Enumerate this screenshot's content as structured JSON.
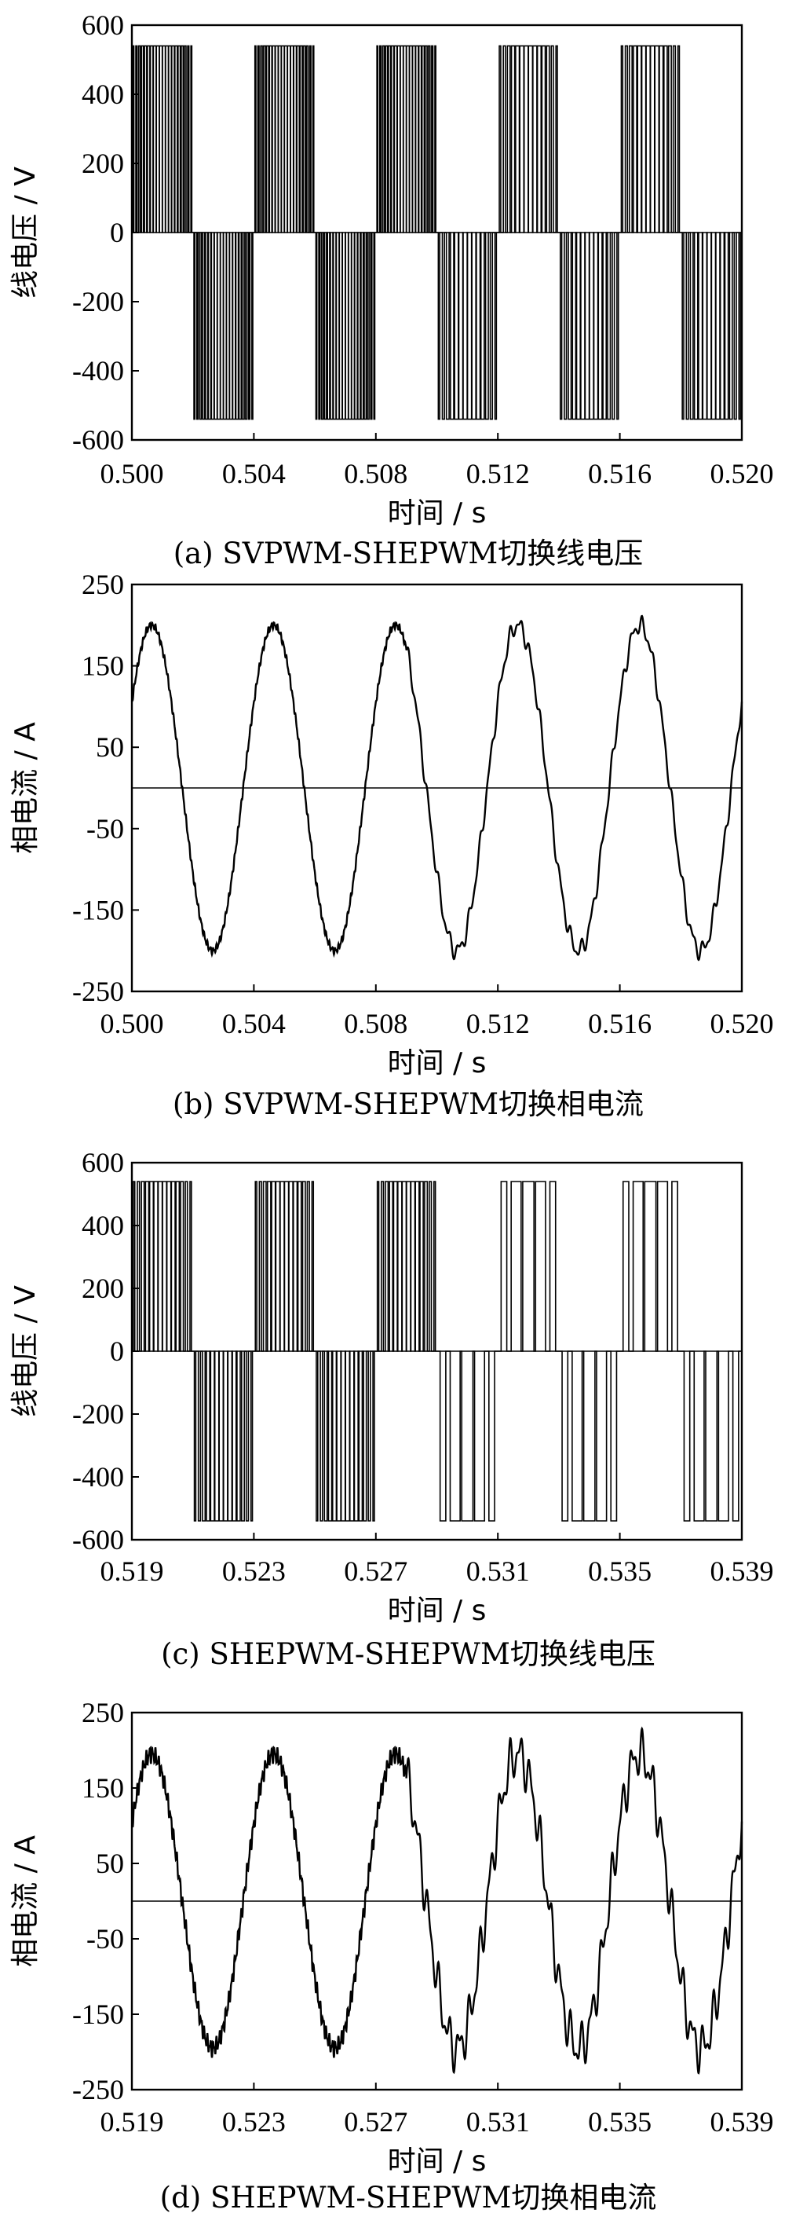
{
  "chart_data": [
    {
      "id": "a",
      "type": "line",
      "signal": "pwm",
      "caption": "(a)  SVPWM-SHEPWM切换线电压",
      "xlabel": "时间 / s",
      "ylabel": "线电压 / V",
      "xlim": [
        0.5,
        0.52
      ],
      "ylim": [
        -600,
        600
      ],
      "xticks": [
        "0.500",
        "0.504",
        "0.508",
        "0.512",
        "0.516",
        "0.520"
      ],
      "xtick_values": [
        0.5,
        0.504,
        0.508,
        0.512,
        0.516,
        0.52
      ],
      "yticks": [
        "600",
        "400",
        "200",
        "0",
        "-200",
        "-400",
        "-600"
      ],
      "ytick_values": [
        600,
        400,
        200,
        0,
        -200,
        -400,
        -600
      ],
      "amplitude": 540,
      "fundamental_period": 0.004,
      "switch_time": 0.509,
      "first_segment_pulses_per_half": 20,
      "second_segment_pulses_per_half": 14
    },
    {
      "id": "b",
      "type": "line",
      "signal": "current",
      "caption": "(b)  SVPWM-SHEPWM切换相电流",
      "xlabel": "时间 / s",
      "ylabel": "相电流 / A",
      "xlim": [
        0.5,
        0.52
      ],
      "ylim": [
        -250,
        250
      ],
      "xticks": [
        "0.500",
        "0.504",
        "0.508",
        "0.512",
        "0.516",
        "0.520"
      ],
      "xtick_values": [
        0.5,
        0.504,
        0.508,
        0.512,
        0.516,
        0.52
      ],
      "yticks": [
        "250",
        "150",
        "50",
        "-50",
        "-150",
        "-250"
      ],
      "ytick_values": [
        250,
        150,
        50,
        -50,
        -150,
        -250
      ],
      "amplitude": 200,
      "fundamental_period": 0.004,
      "switch_time": 0.509,
      "first_segment_ripple": 3,
      "second_segment_ripple": 8
    },
    {
      "id": "c",
      "type": "line",
      "signal": "pwm",
      "caption": "(c)  SHEPWM-SHEPWM切换线电压",
      "xlabel": "时间 / s",
      "ylabel": "线电压 / V",
      "xlim": [
        0.519,
        0.539
      ],
      "ylim": [
        -600,
        600
      ],
      "xticks": [
        "0.519",
        "0.523",
        "0.527",
        "0.531",
        "0.535",
        "0.539"
      ],
      "xtick_values": [
        0.519,
        0.523,
        0.527,
        0.531,
        0.535,
        0.539
      ],
      "yticks": [
        "600",
        "400",
        "200",
        "0",
        "-200",
        "-400",
        "-600"
      ],
      "ytick_values": [
        600,
        400,
        200,
        0,
        -200,
        -400,
        -600
      ],
      "amplitude": 540,
      "fundamental_period": 0.004,
      "switch_time": 0.528,
      "first_segment_pulses_per_half": 14,
      "second_segment_pulses_per_half": 5
    },
    {
      "id": "d",
      "type": "line",
      "signal": "current",
      "caption": "(d)  SHEPWM-SHEPWM切换相电流",
      "xlabel": "时间 / s",
      "ylabel": "相电流 / A",
      "xlim": [
        0.519,
        0.539
      ],
      "ylim": [
        -250,
        250
      ],
      "xticks": [
        "0.519",
        "0.523",
        "0.527",
        "0.531",
        "0.535",
        "0.539"
      ],
      "xtick_values": [
        0.519,
        0.523,
        0.527,
        0.531,
        0.535,
        0.539
      ],
      "yticks": [
        "250",
        "150",
        "50",
        "-50",
        "-150",
        "-250"
      ],
      "ytick_values": [
        250,
        150,
        50,
        -50,
        -150,
        -250
      ],
      "amplitude": 195,
      "fundamental_period": 0.004,
      "switch_time": 0.528,
      "first_segment_ripple": 8,
      "second_segment_ripple": 22
    }
  ]
}
